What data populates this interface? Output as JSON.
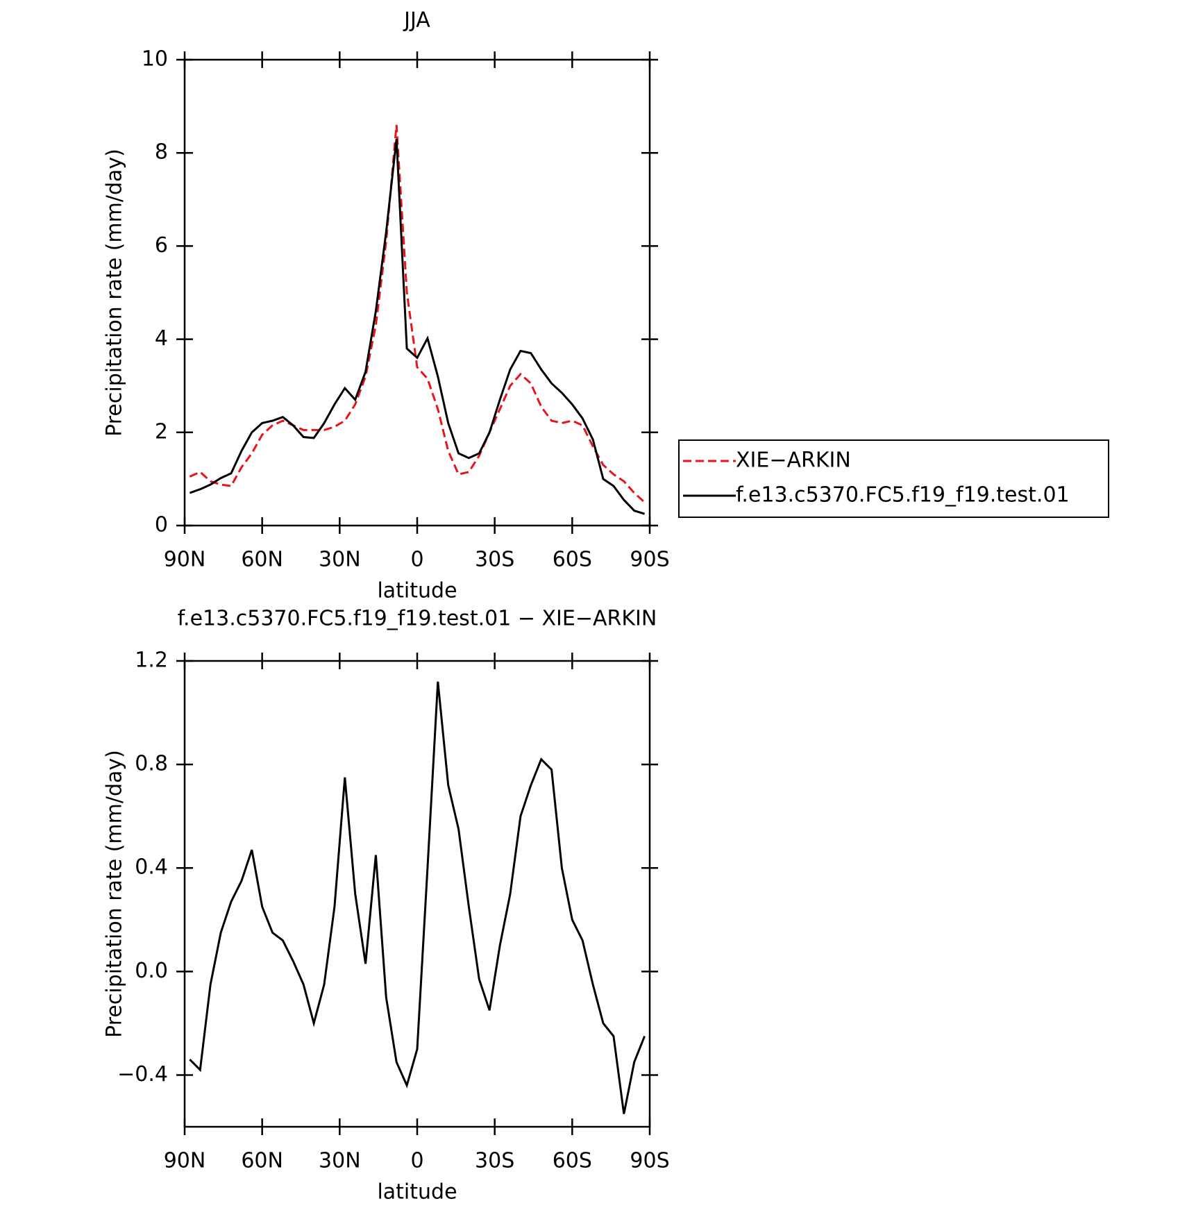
{
  "chart_data": [
    {
      "type": "line",
      "title": "JJA",
      "x_label": "latitude",
      "y_label": "Precipitation rate (mm/day)",
      "x": [
        88,
        84,
        80,
        76,
        72,
        68,
        64,
        60,
        56,
        52,
        48,
        44,
        40,
        36,
        32,
        28,
        24,
        20,
        16,
        12,
        8,
        4,
        0,
        -4,
        -8,
        -12,
        -16,
        -20,
        -24,
        -28,
        -32,
        -36,
        -40,
        -44,
        -48,
        -52,
        -56,
        -60,
        -64,
        -68,
        -72,
        -76,
        -80,
        -84,
        -88
      ],
      "xlim": [
        90,
        -90
      ],
      "xticks": [
        {
          "value": 90,
          "label": "90N"
        },
        {
          "value": 60,
          "label": "60N"
        },
        {
          "value": 30,
          "label": "30N"
        },
        0,
        {
          "value": -30,
          "label": "30S"
        },
        {
          "value": -60,
          "label": "60S"
        },
        {
          "value": -90,
          "label": "90S"
        }
      ],
      "ylim": [
        0,
        10
      ],
      "yticks": [
        0,
        2,
        4,
        6,
        8,
        10
      ],
      "legend": "right",
      "series": [
        {
          "name": "XIE−ARKIN",
          "color": "#e8141b",
          "style": "dashed",
          "values": [
            1.05,
            1.15,
            0.95,
            0.88,
            0.85,
            1.25,
            1.55,
            1.95,
            2.15,
            2.25,
            2.15,
            2.05,
            2.05,
            2.05,
            2.12,
            2.25,
            2.6,
            3.2,
            4.3,
            6.1,
            8.6,
            5.0,
            3.4,
            3.15,
            2.5,
            1.6,
            1.1,
            1.15,
            1.5,
            2.0,
            2.5,
            3.0,
            3.25,
            3.05,
            2.55,
            2.25,
            2.2,
            2.25,
            2.15,
            1.7,
            1.3,
            1.1,
            0.95,
            0.7,
            0.5
          ]
        },
        {
          "name": "f.e13.c5370.FC5.f19_f19.test.01",
          "color": "#000000",
          "style": "solid",
          "values": [
            0.7,
            0.78,
            0.88,
            1.02,
            1.12,
            1.6,
            2.0,
            2.2,
            2.25,
            2.33,
            2.15,
            1.9,
            1.88,
            2.2,
            2.6,
            2.95,
            2.7,
            3.3,
            4.6,
            6.3,
            8.3,
            3.8,
            3.6,
            4.02,
            3.2,
            2.2,
            1.55,
            1.45,
            1.55,
            2.0,
            2.7,
            3.35,
            3.75,
            3.7,
            3.35,
            3.05,
            2.85,
            2.6,
            2.3,
            1.85,
            1.0,
            0.85,
            0.55,
            0.32,
            0.25
          ]
        }
      ]
    },
    {
      "type": "line",
      "title": "f.e13.c5370.FC5.f19_f19.test.01 − XIE−ARKIN",
      "x_label": "latitude",
      "y_label": "Precipitation rate (mm/day)",
      "x": [
        88,
        84,
        80,
        76,
        72,
        68,
        64,
        60,
        56,
        52,
        48,
        44,
        40,
        36,
        32,
        28,
        24,
        20,
        16,
        12,
        8,
        4,
        0,
        -4,
        -8,
        -12,
        -16,
        -20,
        -24,
        -28,
        -32,
        -36,
        -40,
        -44,
        -48,
        -52,
        -56,
        -60,
        -64,
        -68,
        -72,
        -76,
        -80,
        -84,
        -88
      ],
      "xlim": [
        90,
        -90
      ],
      "xticks": [
        {
          "value": 90,
          "label": "90N"
        },
        {
          "value": 60,
          "label": "60N"
        },
        {
          "value": 30,
          "label": "30N"
        },
        0,
        {
          "value": -30,
          "label": "30S"
        },
        {
          "value": -60,
          "label": "60S"
        },
        {
          "value": -90,
          "label": "90S"
        }
      ],
      "ylim": [
        -0.6,
        1.2
      ],
      "yticks": [
        {
          "value": -0.4,
          "label": "−0.4"
        },
        {
          "value": 0,
          "label": "0.0"
        },
        0.4,
        0.8,
        1.2
      ],
      "series": [
        {
          "color": "#000000",
          "style": "solid",
          "values": [
            -0.34,
            -0.38,
            -0.05,
            0.15,
            0.27,
            0.35,
            0.47,
            0.25,
            0.15,
            0.12,
            0.04,
            -0.05,
            -0.2,
            -0.05,
            0.25,
            0.75,
            0.3,
            0.03,
            0.45,
            -0.1,
            -0.35,
            -0.44,
            -0.3,
            0.4,
            1.12,
            0.72,
            0.55,
            0.25,
            -0.03,
            -0.15,
            0.1,
            0.3,
            0.6,
            0.72,
            0.82,
            0.78,
            0.4,
            0.2,
            0.12,
            -0.05,
            -0.2,
            -0.25,
            -0.55,
            -0.35,
            -0.25
          ]
        }
      ]
    }
  ]
}
